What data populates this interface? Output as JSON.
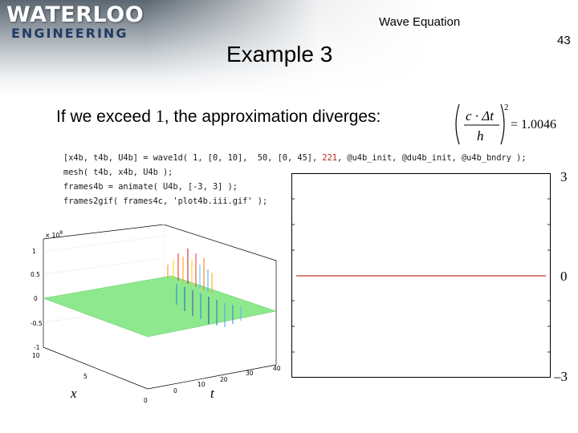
{
  "header": {
    "logo_main": "WATERLOO",
    "logo_sub": "ENGINEERING",
    "title": "Wave Equation",
    "slide_number": "43"
  },
  "slide": {
    "title": "Example 3",
    "bullet_before": "If we exceed ",
    "bullet_value": "1",
    "bullet_after": ", the approximation diverges:"
  },
  "formula": {
    "numerator": "c · Δt",
    "denominator": "h",
    "exponent": "2",
    "result": "= 1.0046"
  },
  "code": {
    "line1_pre": "[x4b, t4b, U4b] = wave1d( 1, [0, 10],  50, [0, 45], ",
    "line1_num": "221",
    "line1_post": ", @u4b_init, @du4b_init, @u4b_bndry );",
    "line2": "mesh( t4b, x4b, U4b );",
    "line3": "frames4b = animate( U4b, [-3, 3] );",
    "line4": "frames2gif( frames4c, 'plot4b.iii.gif' );"
  },
  "animation_panel": {
    "y_top": "3",
    "y_mid": "0",
    "y_bottom": "–3",
    "line_color": "#c0392b"
  },
  "mesh_plot": {
    "exponent_label": "× 10",
    "exponent_power": "8",
    "z_ticks": [
      "1",
      "0.5",
      "0",
      "-0.5",
      "-1"
    ],
    "x_ticks": [
      "10",
      "5",
      "0"
    ],
    "t_ticks": [
      "40",
      "30",
      "20",
      "10",
      "0"
    ],
    "x_label": "x",
    "t_label": "t"
  }
}
